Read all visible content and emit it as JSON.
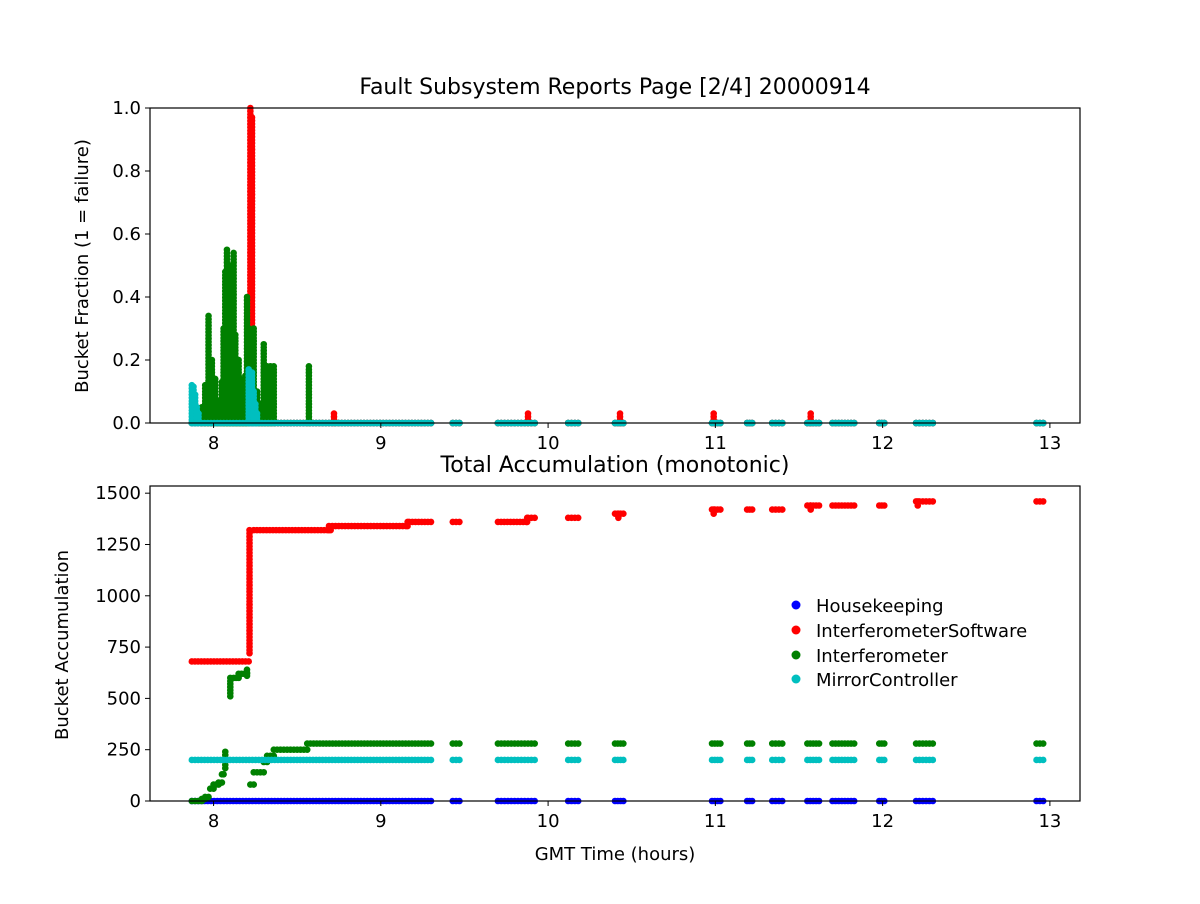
{
  "chart_data": [
    {
      "type": "scatter",
      "title": "Fault Subsystem Reports Page [2/4] 20000914",
      "xlabel": "",
      "ylabel": "Bucket Fraction (1 = failure)",
      "xlim": [
        7.62,
        13.18
      ],
      "ylim": [
        0.0,
        1.0
      ],
      "xticks": [
        8,
        9,
        10,
        11,
        12,
        13
      ],
      "yticks": [
        0.0,
        0.2,
        0.4,
        0.6,
        0.8,
        1.0
      ],
      "ytick_labels": [
        "0.0",
        "0.2",
        "0.4",
        "0.6",
        "0.8",
        "1.0"
      ],
      "grid": false,
      "series": [
        {
          "name": "Housekeeping",
          "color": "#0000ff",
          "baseline": {
            "value": 0.0,
            "segments": [
              [
                7.87,
                9.3
              ],
              [
                9.43,
                9.47
              ],
              [
                9.7,
                9.92
              ],
              [
                10.12,
                10.18
              ],
              [
                10.4,
                10.45
              ],
              [
                10.98,
                11.03
              ],
              [
                11.19,
                11.22
              ],
              [
                11.34,
                11.4
              ],
              [
                11.55,
                11.62
              ],
              [
                11.7,
                11.83
              ],
              [
                11.98,
                12.01
              ],
              [
                12.2,
                12.3
              ],
              [
                12.92,
                12.96
              ]
            ]
          },
          "spikes": []
        },
        {
          "name": "InterferometerSoftware",
          "color": "#ff0000",
          "baseline": {
            "value": 0.0,
            "segments": [
              [
                7.87,
                9.3
              ],
              [
                9.43,
                9.47
              ],
              [
                9.7,
                9.92
              ],
              [
                10.12,
                10.18
              ],
              [
                10.4,
                10.45
              ],
              [
                10.98,
                11.03
              ],
              [
                11.19,
                11.22
              ],
              [
                11.34,
                11.4
              ],
              [
                11.55,
                11.62
              ],
              [
                11.7,
                11.83
              ],
              [
                11.98,
                12.01
              ],
              [
                12.2,
                12.3
              ],
              [
                12.92,
                12.96
              ]
            ]
          },
          "spikes": [
            [
              8.22,
              1.0
            ],
            [
              8.23,
              0.97
            ],
            [
              8.72,
              0.03
            ],
            [
              9.88,
              0.03
            ],
            [
              10.43,
              0.03
            ],
            [
              10.99,
              0.03
            ],
            [
              11.57,
              0.03
            ]
          ]
        },
        {
          "name": "Interferometer",
          "color": "#008000",
          "baseline": {
            "value": 0.0,
            "segments": [
              [
                7.87,
                9.3
              ],
              [
                9.43,
                9.47
              ],
              [
                9.7,
                9.92
              ],
              [
                10.12,
                10.18
              ],
              [
                10.4,
                10.45
              ],
              [
                10.98,
                11.03
              ],
              [
                11.19,
                11.22
              ],
              [
                11.34,
                11.4
              ],
              [
                11.55,
                11.62
              ],
              [
                11.7,
                11.83
              ],
              [
                11.98,
                12.01
              ],
              [
                12.2,
                12.3
              ],
              [
                12.92,
                12.96
              ]
            ]
          },
          "spikes": [
            [
              7.93,
              0.05
            ],
            [
              7.95,
              0.12
            ],
            [
              7.97,
              0.34
            ],
            [
              7.99,
              0.2
            ],
            [
              8.01,
              0.14
            ],
            [
              8.03,
              0.07
            ],
            [
              8.05,
              0.13
            ],
            [
              8.06,
              0.3
            ],
            [
              8.07,
              0.48
            ],
            [
              8.08,
              0.55
            ],
            [
              8.09,
              0.42
            ],
            [
              8.1,
              0.33
            ],
            [
              8.11,
              0.5
            ],
            [
              8.12,
              0.54
            ],
            [
              8.13,
              0.28
            ],
            [
              8.14,
              0.12
            ],
            [
              8.15,
              0.2
            ],
            [
              8.16,
              0.14
            ],
            [
              8.17,
              0.11
            ],
            [
              8.18,
              0.08
            ],
            [
              8.19,
              0.15
            ],
            [
              8.2,
              0.4
            ],
            [
              8.21,
              0.3
            ],
            [
              8.24,
              0.3
            ],
            [
              8.26,
              0.1
            ],
            [
              8.28,
              0.06
            ],
            [
              8.3,
              0.25
            ],
            [
              8.32,
              0.18
            ],
            [
              8.34,
              0.18
            ],
            [
              8.36,
              0.18
            ],
            [
              8.57,
              0.18
            ]
          ]
        },
        {
          "name": "MirrorController",
          "color": "#00bfbf",
          "baseline": {
            "value": 0.0,
            "segments": [
              [
                7.87,
                9.3
              ],
              [
                9.43,
                9.47
              ],
              [
                9.7,
                9.92
              ],
              [
                10.12,
                10.18
              ],
              [
                10.4,
                10.45
              ],
              [
                10.98,
                11.03
              ],
              [
                11.19,
                11.22
              ],
              [
                11.34,
                11.4
              ],
              [
                11.55,
                11.62
              ],
              [
                11.7,
                11.83
              ],
              [
                11.98,
                12.01
              ],
              [
                12.2,
                12.3
              ],
              [
                12.92,
                12.96
              ]
            ]
          },
          "spikes": [
            [
              7.87,
              0.12
            ],
            [
              7.88,
              0.115
            ],
            [
              7.89,
              0.09
            ],
            [
              7.9,
              0.05
            ],
            [
              7.91,
              0.03
            ],
            [
              8.21,
              0.17
            ],
            [
              8.22,
              0.16
            ],
            [
              8.23,
              0.16
            ],
            [
              8.24,
              0.1
            ],
            [
              8.25,
              0.06
            ],
            [
              8.26,
              0.03
            ]
          ]
        }
      ]
    },
    {
      "type": "scatter",
      "title": "Total Accumulation (monotonic)",
      "xlabel": "GMT Time (hours)",
      "ylabel": "Bucket Accumulation",
      "xlim": [
        7.62,
        13.18
      ],
      "ylim": [
        0,
        1535
      ],
      "xticks": [
        8,
        9,
        10,
        11,
        12,
        13
      ],
      "yticks": [
        0,
        250,
        500,
        750,
        1000,
        1250,
        1500
      ],
      "ytick_labels": [
        "0",
        "250",
        "500",
        "750",
        "1000",
        "1250",
        "1500"
      ],
      "grid": false,
      "legend": "center-right",
      "series": [
        {
          "name": "Housekeeping",
          "color": "#0000ff",
          "steps": [
            [
              7.87,
              9.3,
              0
            ],
            [
              9.43,
              9.47,
              0
            ],
            [
              9.7,
              9.92,
              0
            ],
            [
              10.12,
              10.18,
              0
            ],
            [
              10.4,
              10.45,
              0
            ],
            [
              10.98,
              11.03,
              0
            ],
            [
              11.19,
              11.22,
              0
            ],
            [
              11.34,
              11.4,
              0
            ],
            [
              11.55,
              11.62,
              0
            ],
            [
              11.7,
              11.83,
              0
            ],
            [
              11.98,
              12.01,
              0
            ],
            [
              12.2,
              12.3,
              0
            ],
            [
              12.92,
              12.96,
              0
            ]
          ],
          "ramps": []
        },
        {
          "name": "InterferometerSoftware",
          "color": "#ff0000",
          "steps": [
            [
              7.87,
              8.21,
              680
            ],
            [
              8.24,
              8.7,
              1320
            ],
            [
              8.71,
              9.15,
              1340
            ],
            [
              9.17,
              9.3,
              1360
            ],
            [
              9.43,
              9.47,
              1360
            ],
            [
              9.7,
              9.87,
              1360
            ],
            [
              9.88,
              9.92,
              1380
            ],
            [
              10.12,
              10.18,
              1380
            ],
            [
              10.4,
              10.45,
              1400
            ],
            [
              10.98,
              11.03,
              1420
            ],
            [
              11.19,
              11.22,
              1420
            ],
            [
              11.34,
              11.4,
              1420
            ],
            [
              11.55,
              11.62,
              1440
            ],
            [
              11.7,
              11.83,
              1440
            ],
            [
              11.98,
              12.01,
              1440
            ],
            [
              12.2,
              12.3,
              1460
            ],
            [
              12.92,
              12.96,
              1460
            ]
          ],
          "ramps": [
            [
              8.215,
              720,
              1320
            ],
            [
              8.69,
              1320,
              1340
            ],
            [
              9.16,
              1340,
              1360
            ],
            [
              9.875,
              1360,
              1380
            ],
            [
              10.42,
              1380,
              1400
            ],
            [
              10.99,
              1400,
              1420
            ],
            [
              11.57,
              1420,
              1440
            ],
            [
              12.21,
              1440,
              1460
            ]
          ]
        },
        {
          "name": "Interferometer",
          "color": "#008000",
          "steps": [
            [
              7.87,
              7.93,
              0
            ],
            [
              7.93,
              7.95,
              10
            ],
            [
              7.95,
              7.97,
              20
            ],
            [
              7.98,
              8.0,
              60
            ],
            [
              8.0,
              8.03,
              80
            ],
            [
              8.03,
              8.05,
              90
            ],
            [
              8.05,
              8.06,
              130
            ],
            [
              8.12,
              8.15,
              600
            ],
            [
              8.15,
              8.2,
              620
            ],
            [
              8.22,
              8.24,
              80
            ],
            [
              8.24,
              8.3,
              140
            ],
            [
              8.3,
              8.32,
              190
            ],
            [
              8.32,
              8.36,
              220
            ],
            [
              8.36,
              8.56,
              250
            ],
            [
              8.56,
              9.3,
              280
            ],
            [
              9.43,
              9.47,
              280
            ],
            [
              9.7,
              9.92,
              280
            ],
            [
              10.12,
              10.18,
              280
            ],
            [
              10.4,
              10.45,
              280
            ],
            [
              10.98,
              11.03,
              280
            ],
            [
              11.19,
              11.22,
              280
            ],
            [
              11.34,
              11.4,
              280
            ],
            [
              11.55,
              11.62,
              280
            ],
            [
              11.7,
              11.83,
              280
            ],
            [
              11.98,
              12.01,
              280
            ],
            [
              12.2,
              12.3,
              280
            ],
            [
              12.92,
              12.96,
              280
            ]
          ],
          "ramps": [
            [
              8.07,
              160,
              240
            ],
            [
              8.1,
              510,
              600
            ],
            [
              8.2,
              610,
              640
            ]
          ]
        },
        {
          "name": "MirrorController",
          "color": "#00bfbf",
          "steps": [
            [
              7.87,
              9.3,
              200
            ],
            [
              9.43,
              9.47,
              200
            ],
            [
              9.7,
              9.92,
              200
            ],
            [
              10.12,
              10.18,
              200
            ],
            [
              10.4,
              10.45,
              200
            ],
            [
              10.98,
              11.03,
              200
            ],
            [
              11.19,
              11.22,
              200
            ],
            [
              11.34,
              11.4,
              200
            ],
            [
              11.55,
              11.62,
              200
            ],
            [
              11.7,
              11.83,
              200
            ],
            [
              11.98,
              12.01,
              200
            ],
            [
              12.2,
              12.3,
              200
            ],
            [
              12.92,
              12.96,
              200
            ]
          ],
          "ramps": []
        }
      ]
    }
  ]
}
